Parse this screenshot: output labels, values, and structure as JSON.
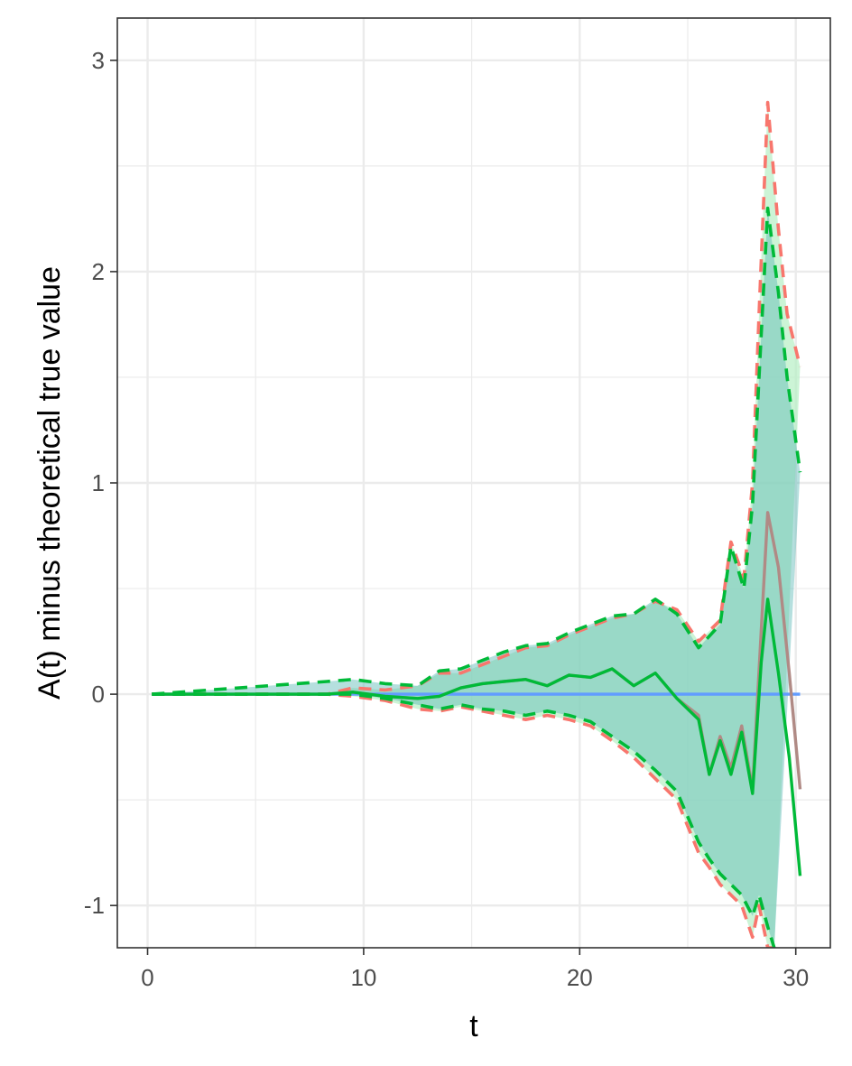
{
  "chart_data": {
    "type": "line",
    "title": "",
    "xlabel": "t",
    "ylabel": "A(t) minus theoretical true value",
    "xlim": [
      -1.4,
      31.6
    ],
    "ylim": [
      -1.2,
      3.2
    ],
    "x_ticks": [
      0,
      10,
      20,
      30
    ],
    "y_ticks": [
      -1,
      0,
      1,
      2,
      3
    ],
    "x_tick_labels": [
      "0",
      "10",
      "20",
      "30"
    ],
    "y_tick_labels": [
      "-1",
      "0",
      "1",
      "2",
      "3"
    ],
    "grid": true,
    "legend": "none",
    "colors": {
      "reference": "#619CFF",
      "series_a": "#F8766D",
      "series_b": "#00BA38",
      "band_fill": "#5AB9B6",
      "band_fill_alt": "#B7EFC5",
      "panel_border": "#333333",
      "grid": "#EBEBEB"
    },
    "series": [
      {
        "style": "solid",
        "color": "#619CFF",
        "x": [
          0.2,
          30.2
        ],
        "y": [
          0,
          0
        ]
      },
      {
        "style": "solid",
        "color": "#B08A85",
        "x": [
          0.2,
          8.3,
          9.5,
          11,
          12.5,
          13.5,
          14.5,
          15.5,
          16.5,
          17.5,
          18.5,
          19.5,
          20.5,
          21.5,
          22.5,
          23.5,
          24.5,
          25.5,
          26,
          26.5,
          27,
          27.5,
          28,
          28.4,
          28.7,
          29.2,
          29.7,
          30.2
        ],
        "y": [
          0,
          0,
          0.01,
          -0.01,
          -0.02,
          -0.01,
          0.03,
          0.05,
          0.06,
          0.07,
          0.04,
          0.09,
          0.08,
          0.12,
          0.04,
          0.1,
          -0.02,
          -0.1,
          -0.38,
          -0.2,
          -0.35,
          -0.15,
          -0.45,
          0.3,
          0.86,
          0.6,
          0.1,
          -0.45
        ]
      },
      {
        "style": "solid",
        "color": "#00BA38",
        "x": [
          0.2,
          8.3,
          9.5,
          11,
          12.5,
          13.5,
          14.5,
          15.5,
          16.5,
          17.5,
          18.5,
          19.5,
          20.5,
          21.5,
          22.5,
          23.5,
          24.5,
          25.5,
          26,
          26.5,
          27,
          27.5,
          28,
          28.4,
          28.7,
          29.2,
          29.7,
          30.2
        ],
        "y": [
          0,
          0,
          0.01,
          -0.01,
          -0.02,
          -0.01,
          0.03,
          0.05,
          0.06,
          0.07,
          0.04,
          0.09,
          0.08,
          0.12,
          0.04,
          0.1,
          -0.02,
          -0.12,
          -0.38,
          -0.22,
          -0.38,
          -0.18,
          -0.47,
          0.15,
          0.45,
          0.1,
          -0.3,
          -0.86
        ]
      },
      {
        "style": "dashed",
        "color": "#F8766D",
        "x": [
          0.2,
          8.3,
          9.5,
          11,
          12.5,
          13.5,
          14.5,
          15.5,
          16.5,
          17.5,
          18.5,
          19.5,
          20.5,
          21.5,
          22.5,
          23.5,
          24.5,
          25.5,
          26.5,
          27,
          27.6,
          28,
          28.3,
          28.7,
          29.2,
          29.6,
          30.2
        ],
        "y": [
          0,
          0,
          0.03,
          0.02,
          0.04,
          0.1,
          0.1,
          0.14,
          0.18,
          0.22,
          0.23,
          0.28,
          0.32,
          0.36,
          0.38,
          0.44,
          0.4,
          0.25,
          0.35,
          0.72,
          0.55,
          1.0,
          1.8,
          2.8,
          2.2,
          1.8,
          1.55
        ]
      },
      {
        "style": "dashed",
        "color": "#F8766D",
        "x": [
          0.2,
          8.3,
          9.5,
          11,
          12.5,
          13.5,
          14.5,
          15.5,
          16.5,
          17.5,
          18.5,
          19.5,
          20.5,
          21.5,
          22.5,
          23.5,
          24.5,
          25.5,
          26,
          26.5,
          27,
          27.5,
          28,
          28.3,
          28.7,
          29
        ],
        "y": [
          0,
          0,
          -0.01,
          -0.03,
          -0.07,
          -0.08,
          -0.06,
          -0.08,
          -0.1,
          -0.12,
          -0.1,
          -0.12,
          -0.15,
          -0.22,
          -0.3,
          -0.4,
          -0.5,
          -0.75,
          -0.82,
          -0.9,
          -0.95,
          -1.0,
          -1.15,
          -1.0,
          -1.2,
          -1.2
        ]
      },
      {
        "style": "dashed",
        "color": "#00BA38",
        "x": [
          0.2,
          8.3,
          9.5,
          11,
          12.5,
          13.5,
          14.5,
          15.5,
          16.5,
          17.5,
          18.5,
          19.5,
          20.5,
          21.5,
          22.5,
          23.5,
          24.5,
          25.5,
          26.5,
          27,
          27.6,
          28,
          28.3,
          28.7,
          29.2,
          29.6,
          30.2
        ],
        "y": [
          0,
          0.06,
          0.07,
          0.05,
          0.04,
          0.11,
          0.12,
          0.16,
          0.2,
          0.23,
          0.24,
          0.29,
          0.33,
          0.37,
          0.38,
          0.45,
          0.38,
          0.22,
          0.33,
          0.7,
          0.5,
          0.9,
          1.5,
          2.3,
          1.9,
          1.5,
          1.05
        ]
      },
      {
        "style": "dashed",
        "color": "#00BA38",
        "x": [
          0.2,
          8.3,
          9.5,
          11,
          12.5,
          13.5,
          14.5,
          15.5,
          16.5,
          17.5,
          18.5,
          19.5,
          20.5,
          21.5,
          22.5,
          23.5,
          24.5,
          25.5,
          26,
          26.5,
          27,
          27.5,
          28,
          28.3,
          28.7,
          29
        ],
        "y": [
          0,
          0,
          0.0,
          -0.02,
          -0.05,
          -0.07,
          -0.05,
          -0.07,
          -0.08,
          -0.1,
          -0.08,
          -0.1,
          -0.13,
          -0.2,
          -0.27,
          -0.36,
          -0.46,
          -0.7,
          -0.78,
          -0.85,
          -0.9,
          -0.95,
          -1.05,
          -0.95,
          -1.1,
          -1.2
        ]
      }
    ]
  }
}
